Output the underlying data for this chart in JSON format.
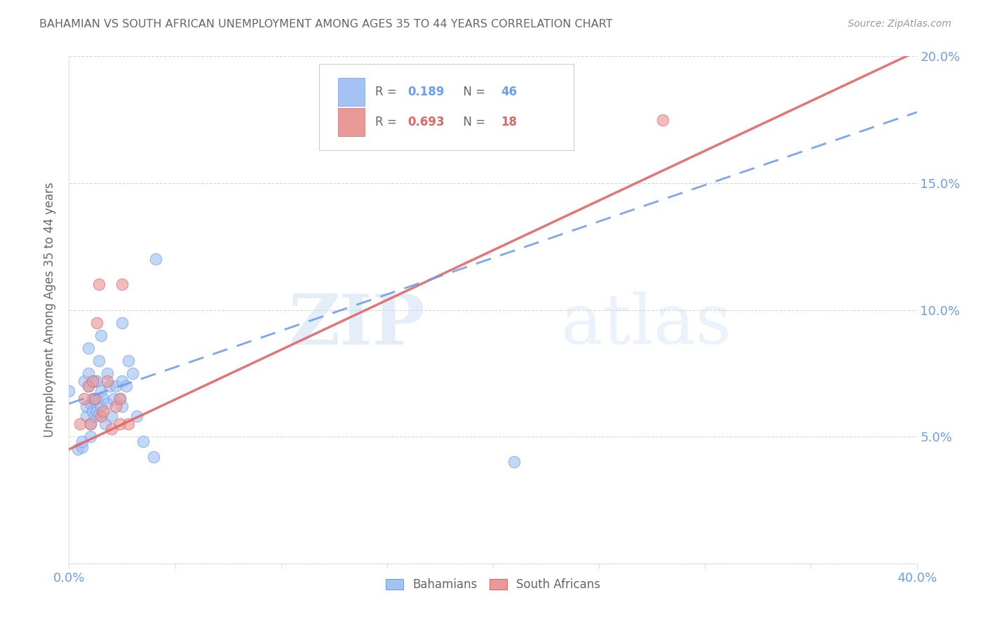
{
  "title": "BAHAMIAN VS SOUTH AFRICAN UNEMPLOYMENT AMONG AGES 35 TO 44 YEARS CORRELATION CHART",
  "source": "Source: ZipAtlas.com",
  "ylabel": "Unemployment Among Ages 35 to 44 years",
  "xlim": [
    0.0,
    0.4
  ],
  "ylim": [
    0.0,
    0.2
  ],
  "xtick_positions": [
    0.0,
    0.05,
    0.1,
    0.15,
    0.2,
    0.25,
    0.3,
    0.35,
    0.4
  ],
  "ytick_positions": [
    0.0,
    0.05,
    0.1,
    0.15,
    0.2
  ],
  "xtick_labels": [
    "0.0%",
    "",
    "",
    "",
    "",
    "",
    "",
    "",
    "40.0%"
  ],
  "ytick_labels_right": [
    "",
    "5.0%",
    "10.0%",
    "15.0%",
    "20.0%"
  ],
  "bahamian_R": 0.189,
  "bahamian_N": 46,
  "sa_R": 0.693,
  "sa_N": 18,
  "bahamian_color": "#a4c2f4",
  "sa_color": "#ea9999",
  "bahamian_line_color": "#6d9eeb",
  "sa_line_color": "#e06666",
  "watermark_zip": "ZIP",
  "watermark_atlas": "atlas",
  "title_color": "#666666",
  "axis_label_color": "#666666",
  "tick_color": "#6d9eeb",
  "grid_color": "#cccccc",
  "bahamian_x": [
    0.0,
    0.004,
    0.006,
    0.006,
    0.007,
    0.008,
    0.008,
    0.009,
    0.009,
    0.009,
    0.01,
    0.01,
    0.01,
    0.011,
    0.011,
    0.012,
    0.012,
    0.012,
    0.013,
    0.013,
    0.013,
    0.014,
    0.014,
    0.015,
    0.015,
    0.015,
    0.016,
    0.017,
    0.018,
    0.018,
    0.019,
    0.02,
    0.021,
    0.022,
    0.024,
    0.025,
    0.025,
    0.025,
    0.027,
    0.028,
    0.03,
    0.032,
    0.035,
    0.04,
    0.041,
    0.21
  ],
  "bahamian_y": [
    0.068,
    0.045,
    0.046,
    0.048,
    0.072,
    0.058,
    0.062,
    0.07,
    0.075,
    0.085,
    0.05,
    0.055,
    0.063,
    0.06,
    0.065,
    0.058,
    0.065,
    0.072,
    0.06,
    0.065,
    0.072,
    0.059,
    0.08,
    0.062,
    0.068,
    0.09,
    0.065,
    0.055,
    0.063,
    0.075,
    0.07,
    0.058,
    0.065,
    0.07,
    0.065,
    0.062,
    0.072,
    0.095,
    0.07,
    0.08,
    0.075,
    0.058,
    0.048,
    0.042,
    0.12,
    0.04
  ],
  "sa_x": [
    0.005,
    0.007,
    0.009,
    0.01,
    0.011,
    0.012,
    0.013,
    0.014,
    0.015,
    0.016,
    0.018,
    0.02,
    0.022,
    0.024,
    0.024,
    0.025,
    0.028,
    0.28
  ],
  "sa_y": [
    0.055,
    0.065,
    0.07,
    0.055,
    0.072,
    0.065,
    0.095,
    0.11,
    0.058,
    0.06,
    0.072,
    0.053,
    0.062,
    0.055,
    0.065,
    0.11,
    0.055,
    0.175
  ],
  "bah_line_x0": 0.0,
  "bah_line_y0": 0.063,
  "bah_line_x1": 0.4,
  "bah_line_y1": 0.178,
  "sa_line_x0": 0.0,
  "sa_line_y0": 0.045,
  "sa_line_x1": 0.4,
  "sa_line_y1": 0.202
}
